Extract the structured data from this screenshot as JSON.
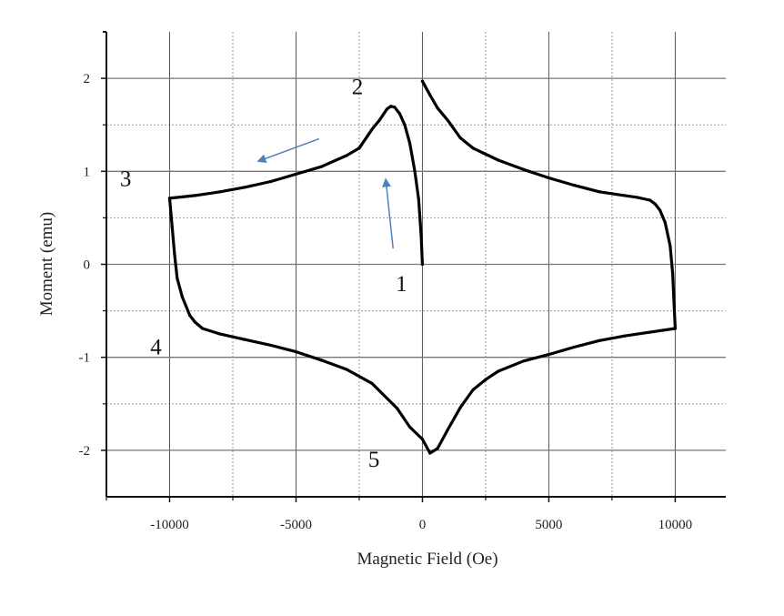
{
  "chart_data": {
    "type": "line",
    "title": "",
    "xlabel": "Magnetic Field (Oe)",
    "ylabel": "Moment (emu)",
    "xlim": [
      -12500,
      12000
    ],
    "ylim": [
      -2.5,
      2.5
    ],
    "grid": true,
    "x_major_ticks": [
      -10000,
      -5000,
      0,
      5000,
      10000
    ],
    "x_tick_labels": [
      "-10000",
      "-5000",
      "0",
      "5000",
      "10000"
    ],
    "x_minor_grid": [
      -7500,
      -2500,
      2500,
      7500
    ],
    "y_major_ticks": [
      2,
      1,
      0,
      -1,
      -2
    ],
    "y_tick_labels": [
      "2",
      "1",
      "0",
      "-1",
      "-2"
    ],
    "y_minor_grid": [
      1.5,
      0.5,
      -0.5,
      -1.5
    ],
    "line_color": "#000000",
    "arrow_color": "#4f81bd",
    "series": [
      {
        "x": [
          0,
          -50,
          -150,
          -300,
          -500,
          -700,
          -900,
          -1100,
          -1250,
          -1400,
          -1700,
          -2000,
          -2500,
          -3000,
          -4000,
          -5000,
          -6000,
          -7000,
          -8000,
          -9000,
          -10000
        ],
        "y": [
          0,
          0.3,
          0.7,
          1.0,
          1.3,
          1.5,
          1.62,
          1.69,
          1.7,
          1.67,
          1.55,
          1.45,
          1.25,
          1.17,
          1.05,
          0.97,
          0.89,
          0.83,
          0.78,
          0.74,
          0.71
        ]
      },
      {
        "x": [
          -10000,
          -9900,
          -9800,
          -9700,
          -9500,
          -9200,
          -9000,
          -8700,
          -8000,
          -7000,
          -6000,
          -5000,
          -4000,
          -3000,
          -2000,
          -1000,
          -500,
          0,
          300,
          600,
          1000,
          1500,
          2000,
          2500,
          3000,
          4000,
          5000,
          6000,
          7000,
          8000,
          9000,
          10000
        ],
        "y": [
          0.71,
          0.4,
          0.1,
          -0.15,
          -0.35,
          -0.55,
          -0.62,
          -0.69,
          -0.75,
          -0.81,
          -0.87,
          -0.94,
          -1.03,
          -1.13,
          -1.28,
          -1.55,
          -1.75,
          -1.88,
          -2.03,
          -1.98,
          -1.78,
          -1.54,
          -1.35,
          -1.24,
          -1.15,
          -1.04,
          -0.97,
          -0.89,
          -0.82,
          -0.77,
          -0.73,
          -0.69
        ]
      },
      {
        "x": [
          10000,
          9950,
          9900,
          9800,
          9600,
          9400,
          9200,
          9000,
          8500,
          8000,
          7000,
          6000,
          5000,
          4000,
          3000,
          2000,
          1500,
          1000,
          600,
          300,
          100,
          0
        ],
        "y": [
          -0.69,
          -0.4,
          -0.1,
          0.2,
          0.45,
          0.58,
          0.65,
          0.69,
          0.72,
          0.74,
          0.78,
          0.85,
          0.93,
          1.02,
          1.12,
          1.25,
          1.36,
          1.55,
          1.68,
          1.82,
          1.92,
          1.97
        ]
      }
    ],
    "annotations": [
      {
        "text": "1",
        "x": -830,
        "y": -0.2
      },
      {
        "text": "2",
        "x": -2570,
        "y": 1.92
      },
      {
        "text": "3",
        "x": -11740,
        "y": 0.93
      },
      {
        "text": "4",
        "x": -10540,
        "y": -0.88
      },
      {
        "text": "5",
        "x": -1920,
        "y": -2.09
      }
    ],
    "arrows": [
      {
        "from": [
          -4090,
          1.35
        ],
        "to": [
          -6480,
          1.11
        ]
      },
      {
        "from": [
          -1160,
          0.17
        ],
        "to": [
          -1450,
          0.91
        ]
      }
    ]
  }
}
